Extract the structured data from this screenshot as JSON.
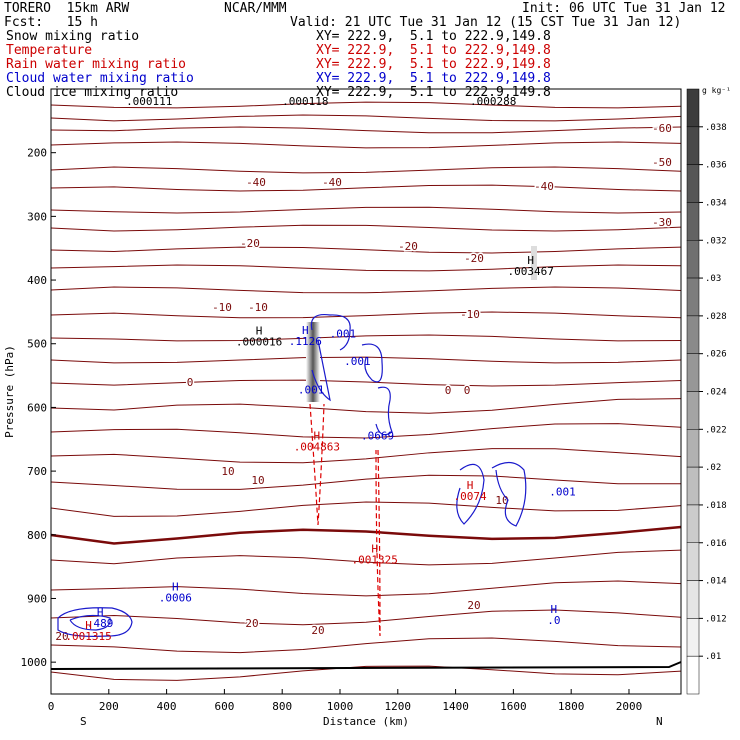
{
  "header": {
    "model": "TORERO  15km ARW",
    "center": "NCAR/MMM",
    "init": "Init: 06 UTC Tue 31 Jan 12",
    "fcst": "Fcst:   15 h",
    "valid": "Valid: 21 UTC Tue 31 Jan 12 (15 CST Tue 31 Jan 12)",
    "fields": [
      {
        "name": "Snow mixing ratio",
        "xy": "XY= 222.9,  5.1 to 222.9,149.8",
        "color": "#000000"
      },
      {
        "name": "Temperature",
        "xy": "XY= 222.9,  5.1 to 222.9,149.8",
        "color": "#cc0000"
      },
      {
        "name": "Rain water mixing ratio",
        "xy": "XY= 222.9,  5.1 to 222.9,149.8",
        "color": "#cc0000"
      },
      {
        "name": "Cloud water mixing ratio",
        "xy": "XY= 222.9,  5.1 to 222.9,149.8",
        "color": "#0000cc"
      },
      {
        "name": "Cloud ice mixing ratio",
        "xy": "XY= 222.9,  5.1 to 222.9,149.8",
        "color": "#000000"
      }
    ]
  },
  "chart_data": {
    "type": "cross-section",
    "xlabel": "Distance (km)",
    "ylabel": "Pressure (hPa)",
    "xlim": [
      0,
      2180
    ],
    "ylim": [
      1050,
      100
    ],
    "xticks": [
      0,
      200,
      400,
      600,
      800,
      1000,
      1200,
      1400,
      1600,
      1800,
      2000
    ],
    "yticks": [
      200,
      300,
      400,
      500,
      600,
      700,
      800,
      900,
      1000
    ],
    "endpoint_labels": {
      "left": "S",
      "right": "N"
    },
    "colorbar": {
      "unit": "g kg⁻¹",
      "ticks": [
        ".01",
        ".012",
        ".014",
        ".016",
        ".018",
        ".02",
        ".022",
        ".024",
        ".026",
        ".028",
        ".03",
        ".032",
        ".034",
        ".036",
        ".038"
      ]
    },
    "temperature_contour_labels": [
      "-60",
      "-50",
      "-40",
      "-30",
      "-20",
      "-10",
      "0",
      "10",
      "20"
    ],
    "max_labels": [
      {
        "text": ".0006",
        "mark": "H",
        "color": "#0000cc",
        "x": 430,
        "p": 905
      },
      {
        "text": ".489",
        "mark": "H",
        "color": "#0000cc",
        "x": 170,
        "p": 945
      },
      {
        "text": ".001315",
        "mark": "H",
        "color": "#cc0000",
        "x": 130,
        "p": 965
      },
      {
        "text": ".1126",
        "mark": "H",
        "color": "#0000cc",
        "x": 880,
        "p": 502
      },
      {
        "text": ".001",
        "mark": "",
        "color": "#0000cc",
        "x": 900,
        "p": 578
      },
      {
        "text": ".001",
        "mark": "",
        "color": "#0000cc",
        "x": 1010,
        "p": 490
      },
      {
        "text": ".001",
        "mark": "",
        "color": "#0000cc",
        "x": 1060,
        "p": 533
      },
      {
        "text": ".0669",
        "mark": "",
        "color": "#0000cc",
        "x": 1130,
        "p": 650
      },
      {
        "text": ".004863",
        "mark": "H",
        "color": "#cc0000",
        "x": 920,
        "p": 668
      },
      {
        "text": ".001325",
        "mark": "H",
        "color": "#cc0000",
        "x": 1120,
        "p": 845
      },
      {
        "text": ".000016",
        "mark": "H",
        "color": "#000000",
        "x": 720,
        "p": 503
      },
      {
        "text": ".003467",
        "mark": "H",
        "color": "#000000",
        "x": 1660,
        "p": 392
      },
      {
        "text": ".0",
        "mark": "H",
        "color": "#0000cc",
        "x": 1740,
        "p": 940
      },
      {
        "text": ".001",
        "mark": "",
        "color": "#0000cc",
        "x": 1770,
        "p": 738
      },
      {
        "text": ".0074",
        "mark": "H",
        "color": "#cc0000",
        "x": 1450,
        "p": 745
      },
      {
        "text": ".000111",
        "mark": "",
        "color": "#000000",
        "x": 340,
        "p": 125
      },
      {
        "text": ".000118",
        "mark": "",
        "color": "#000000",
        "x": 880,
        "p": 125
      },
      {
        "text": ".000288",
        "mark": "",
        "color": "#000000",
        "x": 1530,
        "p": 125
      }
    ]
  }
}
